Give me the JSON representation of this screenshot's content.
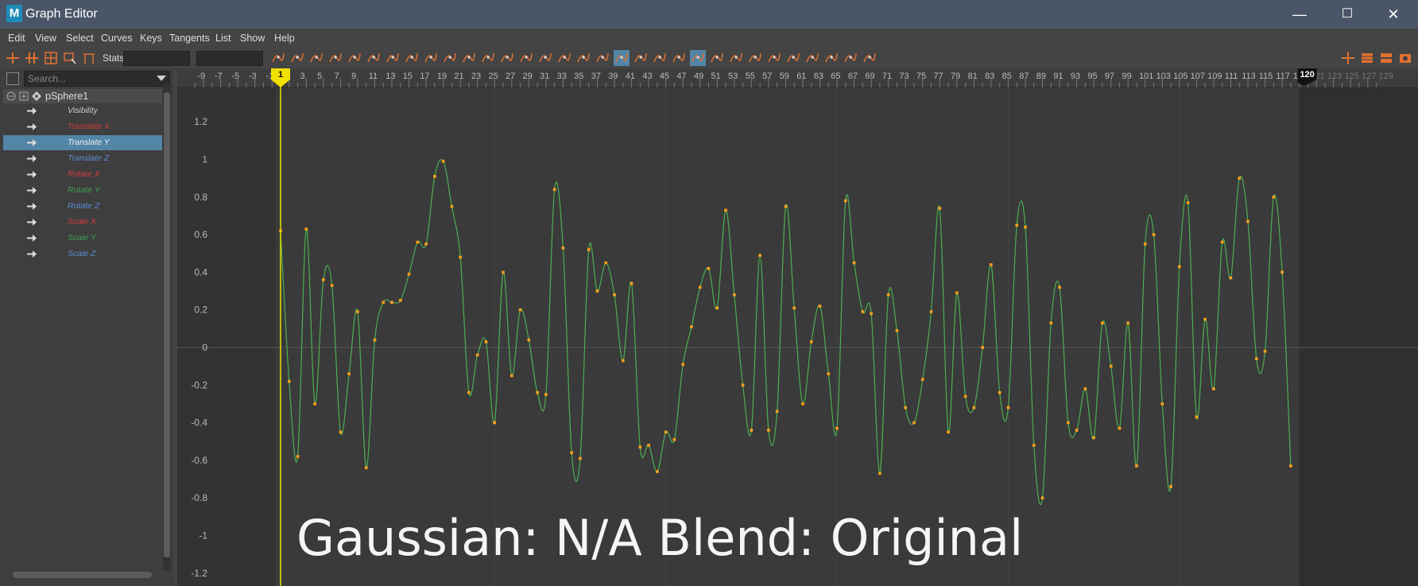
{
  "window": {
    "title": "Graph Editor",
    "logo": "M",
    "minimize": "—",
    "maximize": "☐",
    "close": "✕"
  },
  "menu": [
    "Edit",
    "View",
    "Select",
    "Curves",
    "Keys",
    "Tangents",
    "List",
    "Show",
    "Help"
  ],
  "toolbar": {
    "stats_label": "Stats"
  },
  "outliner": {
    "search_placeholder": "Search...",
    "node": "pSphere1",
    "attributes": [
      {
        "label": "Visibility",
        "color": "#cccccc"
      },
      {
        "label": "Translate X",
        "color": "#d23c3c"
      },
      {
        "label": "Translate Y",
        "color": "#f0f0f0"
      },
      {
        "label": "Translate Z",
        "color": "#5a8cd2"
      },
      {
        "label": "Rotate X",
        "color": "#d23c3c"
      },
      {
        "label": "Rotate Y",
        "color": "#3ca050"
      },
      {
        "label": "Rotate Z",
        "color": "#5a8cd2"
      },
      {
        "label": "Scale X",
        "color": "#d23c3c"
      },
      {
        "label": "Scale Y",
        "color": "#3ca050"
      },
      {
        "label": "Scale Z",
        "color": "#5a8cd2"
      }
    ],
    "selected_index": 2
  },
  "timeline": {
    "current_frame": "1",
    "end_frame": "120",
    "start": -9,
    "end": 129
  },
  "graph": {
    "y_labels": [
      "1.2",
      "1",
      "0.8",
      "0.6",
      "0.4",
      "0.2",
      "0",
      "-0.2",
      "-0.4",
      "-0.6",
      "-0.8",
      "-1",
      "-1.2"
    ],
    "curve_color": "#4caf50",
    "key_color": "#ff9f1c",
    "keys": [
      [
        1,
        0.62
      ],
      [
        2,
        -0.18
      ],
      [
        3,
        -0.58
      ],
      [
        4,
        0.63
      ],
      [
        5,
        -0.3
      ],
      [
        6,
        0.36
      ],
      [
        7,
        0.33
      ],
      [
        8,
        -0.45
      ],
      [
        9,
        -0.14
      ],
      [
        10,
        0.19
      ],
      [
        11,
        -0.64
      ],
      [
        12,
        0.04
      ],
      [
        13,
        0.24
      ],
      [
        14,
        0.24
      ],
      [
        15,
        0.25
      ],
      [
        16,
        0.39
      ],
      [
        17,
        0.56
      ],
      [
        18,
        0.55
      ],
      [
        19,
        0.91
      ],
      [
        20,
        0.99
      ],
      [
        21,
        0.75
      ],
      [
        22,
        0.48
      ],
      [
        23,
        -0.24
      ],
      [
        24,
        -0.04
      ],
      [
        25,
        0.03
      ],
      [
        26,
        -0.4
      ],
      [
        27,
        0.4
      ],
      [
        28,
        -0.15
      ],
      [
        29,
        0.2
      ],
      [
        30,
        0.04
      ],
      [
        31,
        -0.24
      ],
      [
        32,
        -0.25
      ],
      [
        33,
        0.84
      ],
      [
        34,
        0.53
      ],
      [
        35,
        -0.56
      ],
      [
        36,
        -0.59
      ],
      [
        37,
        0.52
      ],
      [
        38,
        0.3
      ],
      [
        39,
        0.45
      ],
      [
        40,
        0.28
      ],
      [
        41,
        -0.07
      ],
      [
        42,
        0.34
      ],
      [
        43,
        -0.53
      ],
      [
        44,
        -0.52
      ],
      [
        45,
        -0.66
      ],
      [
        46,
        -0.45
      ],
      [
        47,
        -0.49
      ],
      [
        48,
        -0.09
      ],
      [
        49,
        0.11
      ],
      [
        50,
        0.32
      ],
      [
        51,
        0.42
      ],
      [
        52,
        0.21
      ],
      [
        53,
        0.73
      ],
      [
        54,
        0.28
      ],
      [
        55,
        -0.2
      ],
      [
        56,
        -0.44
      ],
      [
        57,
        0.49
      ],
      [
        58,
        -0.44
      ],
      [
        59,
        -0.34
      ],
      [
        60,
        0.75
      ],
      [
        61,
        0.21
      ],
      [
        62,
        -0.3
      ],
      [
        63,
        0.03
      ],
      [
        64,
        0.22
      ],
      [
        65,
        -0.14
      ],
      [
        66,
        -0.43
      ],
      [
        67,
        0.78
      ],
      [
        68,
        0.45
      ],
      [
        69,
        0.19
      ],
      [
        70,
        0.18
      ],
      [
        71,
        -0.67
      ],
      [
        72,
        0.28
      ],
      [
        73,
        0.09
      ],
      [
        74,
        -0.32
      ],
      [
        75,
        -0.4
      ],
      [
        76,
        -0.17
      ],
      [
        77,
        0.19
      ],
      [
        78,
        0.74
      ],
      [
        79,
        -0.45
      ],
      [
        80,
        0.29
      ],
      [
        81,
        -0.26
      ],
      [
        82,
        -0.32
      ],
      [
        83,
        0.0
      ],
      [
        84,
        0.44
      ],
      [
        85,
        -0.24
      ],
      [
        86,
        -0.32
      ],
      [
        87,
        0.65
      ],
      [
        88,
        0.64
      ],
      [
        89,
        -0.52
      ],
      [
        90,
        -0.8
      ],
      [
        91,
        0.13
      ],
      [
        92,
        0.32
      ],
      [
        93,
        -0.4
      ],
      [
        94,
        -0.44
      ],
      [
        95,
        -0.22
      ],
      [
        96,
        -0.48
      ],
      [
        97,
        0.13
      ],
      [
        98,
        -0.1
      ],
      [
        99,
        -0.43
      ],
      [
        100,
        0.13
      ],
      [
        101,
        -0.63
      ],
      [
        102,
        0.55
      ],
      [
        103,
        0.6
      ],
      [
        104,
        -0.3
      ],
      [
        105,
        -0.74
      ],
      [
        106,
        0.43
      ],
      [
        107,
        0.77
      ],
      [
        108,
        -0.37
      ],
      [
        109,
        0.15
      ],
      [
        110,
        -0.22
      ],
      [
        111,
        0.56
      ],
      [
        112,
        0.37
      ],
      [
        113,
        0.9
      ],
      [
        114,
        0.67
      ],
      [
        115,
        -0.06
      ],
      [
        116,
        -0.02
      ],
      [
        117,
        0.8
      ],
      [
        118,
        0.4
      ],
      [
        119,
        -0.63
      ]
    ]
  },
  "overlay": {
    "text": "Gaussian: N/A  Blend: Original"
  }
}
